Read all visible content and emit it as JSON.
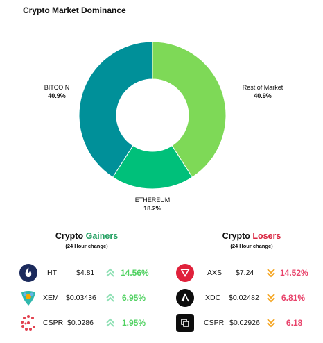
{
  "chart_data": {
    "type": "pie",
    "title": "Crypto Market Dominance",
    "slices": [
      {
        "label": "Rest of Market",
        "value": 40.9,
        "display": "40.9%",
        "color": "#7ed957"
      },
      {
        "label": "ETHEREUM",
        "value": 18.2,
        "display": "18.2%",
        "color": "#00c07a"
      },
      {
        "label": "BITCOIN",
        "value": 40.9,
        "display": "40.9%",
        "color": "#009099"
      }
    ],
    "donut": true,
    "start": "top"
  },
  "gainers": {
    "title_prefix": "Crypto",
    "title_highlight": "Gainers",
    "subtitle": "(24 Hour change)",
    "items": [
      {
        "symbol": "HT",
        "price": "$4.81",
        "change": "14.56%",
        "icon": "ht-coin-icon"
      },
      {
        "symbol": "XEM",
        "price": "$0.03436",
        "change": "6.95%",
        "icon": "xem-coin-icon"
      },
      {
        "symbol": "CSPR",
        "price": "$0.0286",
        "change": "1.95%",
        "icon": "cspr-coin-icon"
      }
    ]
  },
  "losers": {
    "title_prefix": "Crypto",
    "title_highlight": "Losers",
    "subtitle": "(24 Hour change)",
    "items": [
      {
        "symbol": "AXS",
        "price": "$7.24",
        "change": "14.52%",
        "icon": "axs-coin-icon"
      },
      {
        "symbol": "XDC",
        "price": "$0.02482",
        "change": "6.81%",
        "icon": "xdc-coin-icon"
      },
      {
        "symbol": "CSPR",
        "price": "$0.02926",
        "change": "6.18",
        "icon": "cspr-coin-icon"
      }
    ]
  },
  "colors": {
    "up": "#4fd160",
    "down": "#e8426a",
    "up_arrow": "#8ee0b4",
    "down_arrow": "#f5a623"
  }
}
